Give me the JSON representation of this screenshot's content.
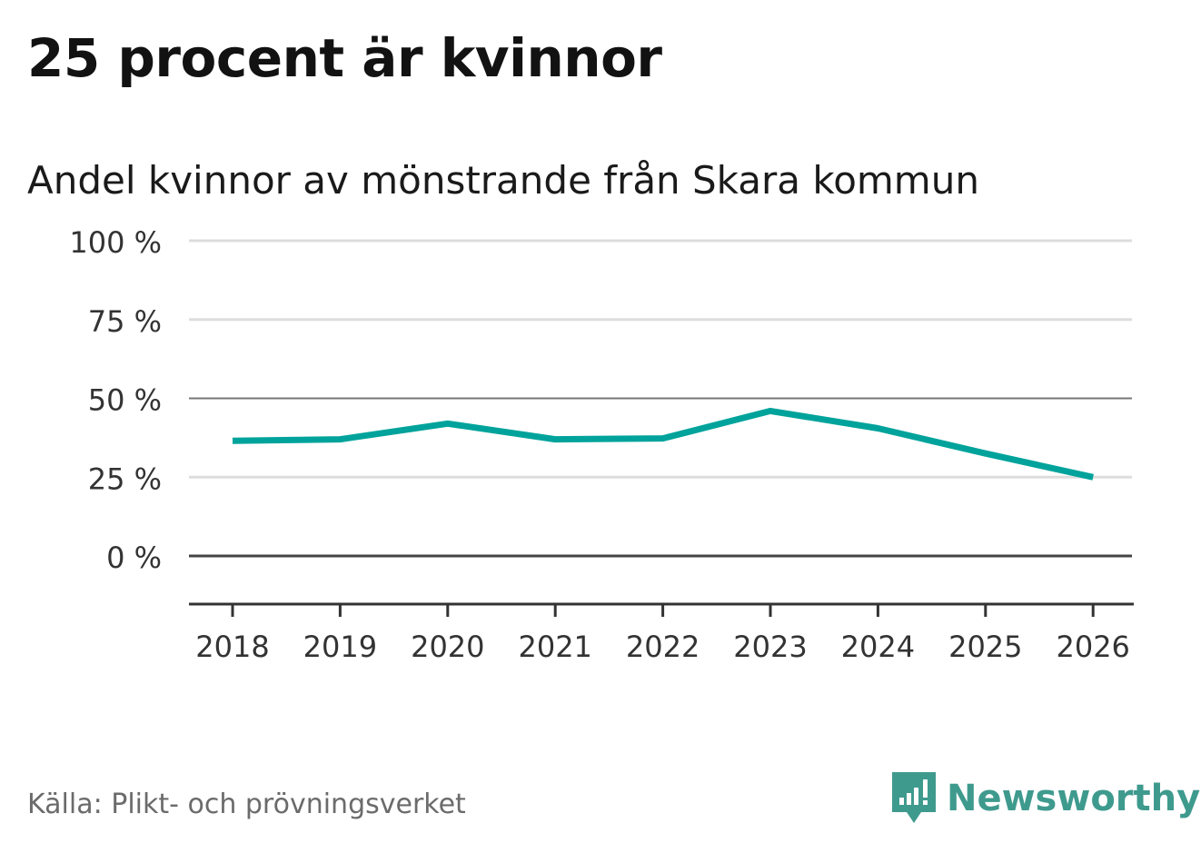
{
  "title": "25 procent är kvinnor",
  "subtitle": "Andel kvinnor av mönstrande från Skara kommun",
  "source": "Källa: Plikt- och prövningsverket",
  "brand": {
    "name": "Newsworthy",
    "icon": "newsworthy-logo-icon",
    "color": "#3f9a8e"
  },
  "chart_data": {
    "type": "line",
    "title": "25 procent är kvinnor",
    "subtitle": "Andel kvinnor av mönstrande från Skara kommun",
    "xlabel": "",
    "ylabel": "",
    "x": [
      "2018",
      "2019",
      "2020",
      "2021",
      "2022",
      "2023",
      "2024",
      "2025",
      "2026"
    ],
    "series": [
      {
        "name": "Andel kvinnor",
        "values": [
          36.5,
          37,
          42,
          37,
          37.3,
          46,
          40.5,
          32.5,
          25
        ],
        "color": "#00a39b"
      }
    ],
    "ylim": [
      -15,
      100
    ],
    "yticks": [
      0,
      25,
      50,
      75,
      100
    ],
    "ytick_labels": [
      "0 %",
      "25 %",
      "50 %",
      "75 %",
      "100 %"
    ],
    "grid": true,
    "legend": "none"
  }
}
